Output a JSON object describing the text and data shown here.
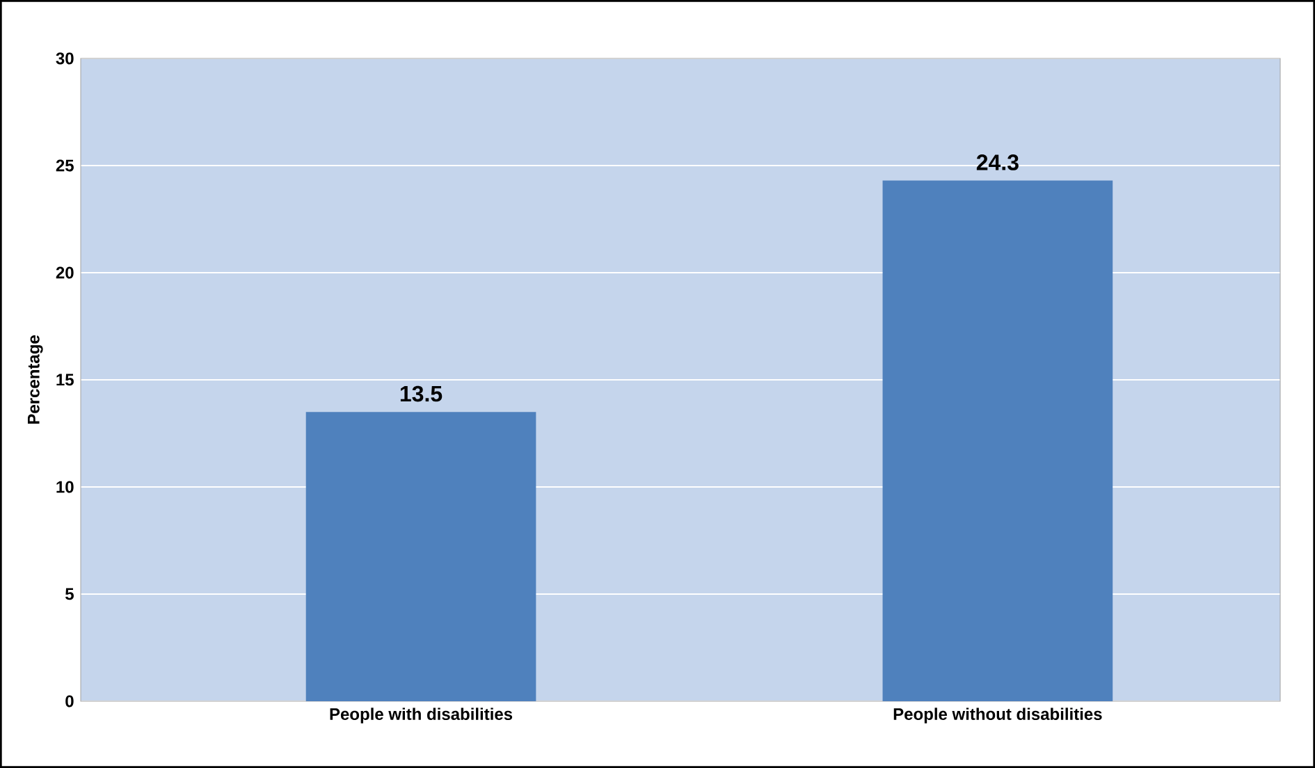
{
  "chart_data": {
    "type": "bar",
    "ylabel": "Percentage",
    "categories": [
      "People with disabilities",
      "People without disabilities"
    ],
    "values": [
      13.5,
      24.3
    ],
    "color": "#4f81bd",
    "ylim": [
      0,
      30
    ],
    "yticks": [
      0,
      5,
      10,
      15,
      20,
      25,
      30
    ],
    "grid": "y",
    "data_labels": true
  }
}
